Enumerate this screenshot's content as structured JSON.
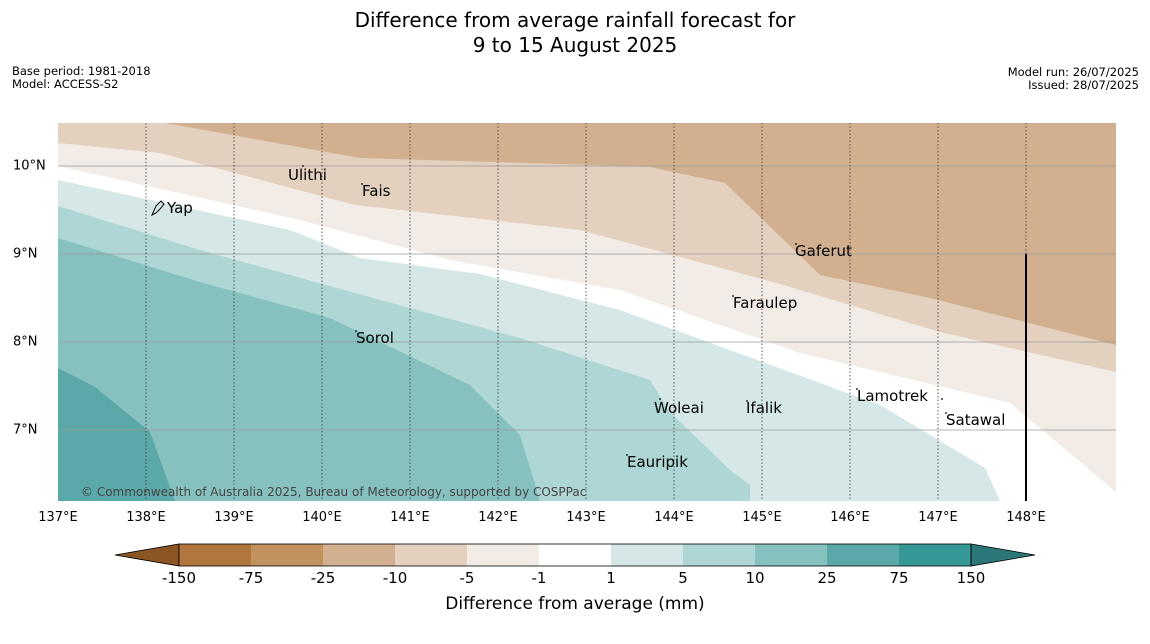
{
  "title": {
    "line1": "Difference from average rainfall forecast for",
    "line2": "9 to 15 August 2025"
  },
  "meta": {
    "base_period": "Base period: 1981-2018",
    "model": "Model: ACCESS-S2",
    "model_run": "Model run: 26/07/2025",
    "issued": "Issued: 28/07/2025"
  },
  "map": {
    "lon_ticks": [
      "137°E",
      "138°E",
      "139°E",
      "140°E",
      "141°E",
      "142°E",
      "143°E",
      "144°E",
      "145°E",
      "146°E",
      "147°E",
      "148°E"
    ],
    "lat_ticks": [
      "10°N",
      "9°N",
      "8°N",
      "7°N"
    ],
    "places": [
      "Ulithi",
      "Fais",
      "Yap",
      "Gaferut",
      "Faraulep",
      "Sorol",
      "Lamotrek",
      "Woleai",
      "Ifalik",
      "Satawal",
      "Eauripik"
    ],
    "copyright": "© Commonwealth of Australia 2025, Bureau of Meteorology, supported by COSPPac"
  },
  "colorbar": {
    "ticks": [
      "-150",
      "-75",
      "-25",
      "-10",
      "-5",
      "-1",
      "1",
      "5",
      "10",
      "25",
      "75",
      "150"
    ],
    "colors": [
      "#8c5624",
      "#b0763e",
      "#c1915e",
      "#d2b08f",
      "#e3d0be",
      "#f3ece6",
      "#ffffff",
      "#d5e8e7",
      "#aed6d5",
      "#87c1bf",
      "#5aa9a8",
      "#359896",
      "#2b7676"
    ],
    "label": "Difference from average (mm)"
  }
}
